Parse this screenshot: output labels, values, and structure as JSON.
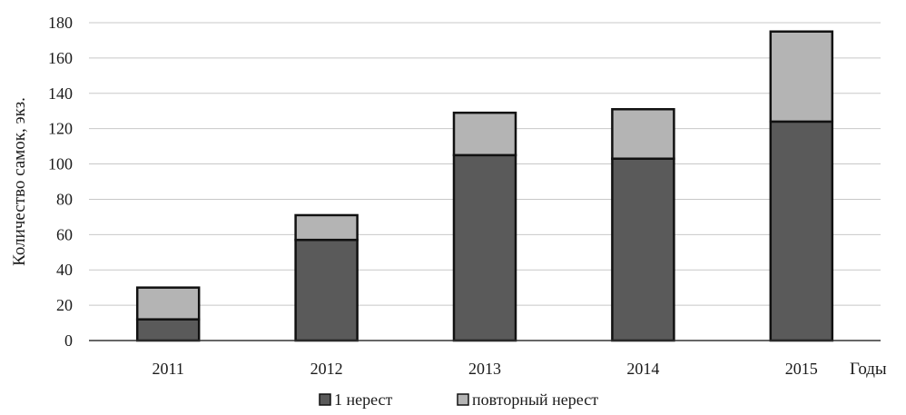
{
  "chart_data": {
    "type": "bar",
    "stacked": true,
    "title": "",
    "xlabel": "Годы",
    "ylabel": "Количество самок, экз.",
    "categories": [
      "2011",
      "2012",
      "2013",
      "2014",
      "2015"
    ],
    "ylim": [
      0,
      180
    ],
    "yticks": [
      0,
      20,
      40,
      60,
      80,
      100,
      120,
      140,
      160,
      180
    ],
    "grid": true,
    "legend_position": "bottom",
    "series": [
      {
        "name": "1 нерест",
        "values": [
          12,
          57,
          105,
          103,
          124
        ],
        "color": "#5a5a5a"
      },
      {
        "name": "повторный нерест",
        "values": [
          18,
          14,
          24,
          28,
          51
        ],
        "color": "#b4b4b4"
      }
    ]
  }
}
